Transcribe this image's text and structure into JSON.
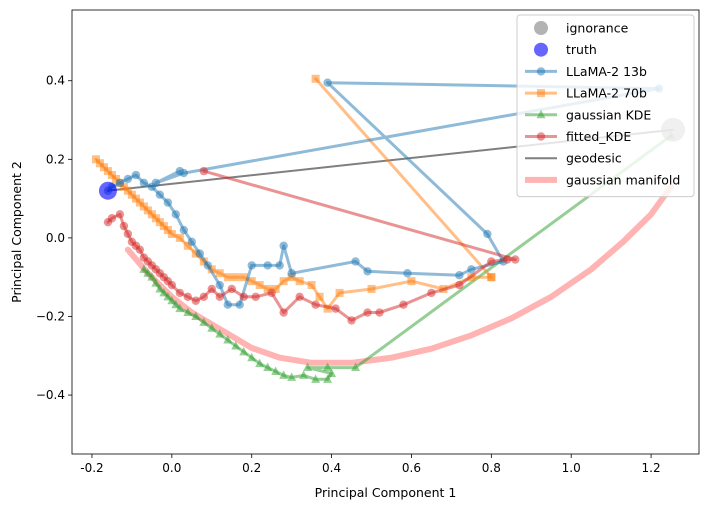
{
  "chart_data": {
    "type": "scatter",
    "xlabel": "Principal Component 1",
    "ylabel": "Principal Component 2",
    "xlim": [
      -0.25,
      1.32
    ],
    "ylim": [
      -0.55,
      0.58
    ],
    "xticks": [
      "-0.2",
      "0.0",
      "0.2",
      "0.4",
      "0.6",
      "0.8",
      "1.0",
      "1.2"
    ],
    "xtick_values": [
      -0.2,
      0.0,
      0.2,
      0.4,
      0.6,
      0.8,
      1.0,
      1.2
    ],
    "yticks": [
      "−0.4",
      "−0.2",
      "0.0",
      "0.2",
      "0.4"
    ],
    "ytick_values": [
      -0.4,
      -0.2,
      0.0,
      0.2,
      0.4
    ],
    "grid": false,
    "legend_position": "top-right",
    "legend": [
      "ignorance",
      "truth",
      "LLaMA-2 13b",
      "LLaMA-2 70b",
      "gaussian KDE",
      "fitted_KDE",
      "geodesic",
      "gaussian manifold"
    ],
    "points": [
      {
        "name": "ignorance",
        "x": 1.255,
        "y": 0.275,
        "color": "#808080"
      },
      {
        "name": "truth",
        "x": -0.16,
        "y": 0.12,
        "color": "#0000ff"
      }
    ],
    "series": [
      {
        "name": "gaussian manifold",
        "color": "#ff9999",
        "marker": "none",
        "x": [
          -0.11,
          -0.06,
          0.0,
          0.05,
          0.1,
          0.15,
          0.2,
          0.27,
          0.35,
          0.45,
          0.55,
          0.65,
          0.75,
          0.85,
          0.95,
          1.05,
          1.13,
          1.2,
          1.25
        ],
        "y": [
          -0.03,
          -0.09,
          -0.15,
          -0.19,
          -0.22,
          -0.25,
          -0.28,
          -0.305,
          -0.318,
          -0.318,
          -0.305,
          -0.282,
          -0.248,
          -0.205,
          -0.15,
          -0.08,
          -0.01,
          0.06,
          0.13
        ]
      },
      {
        "name": "geodesic",
        "color": "#000000",
        "marker": "none",
        "x": [
          -0.16,
          1.255
        ],
        "y": [
          0.12,
          0.275
        ]
      },
      {
        "name": "gaussian KDE",
        "color": "#2ca02c",
        "marker": "triangle",
        "x": [
          -0.07,
          -0.06,
          -0.05,
          -0.04,
          -0.03,
          -0.02,
          -0.01,
          0.0,
          0.01,
          0.02,
          0.04,
          0.06,
          0.08,
          0.1,
          0.12,
          0.14,
          0.16,
          0.18,
          0.2,
          0.22,
          0.24,
          0.26,
          0.28,
          0.3,
          0.33,
          0.36,
          0.39,
          0.4,
          0.34,
          0.39,
          0.46,
          1.25
        ],
        "y": [
          -0.08,
          -0.09,
          -0.1,
          -0.115,
          -0.13,
          -0.14,
          -0.15,
          -0.16,
          -0.17,
          -0.18,
          -0.19,
          -0.2,
          -0.215,
          -0.23,
          -0.245,
          -0.26,
          -0.275,
          -0.29,
          -0.305,
          -0.32,
          -0.33,
          -0.34,
          -0.35,
          -0.355,
          -0.35,
          -0.36,
          -0.36,
          -0.345,
          -0.33,
          -0.33,
          -0.33,
          0.26
        ]
      },
      {
        "name": "LLaMA-2 70b",
        "color": "#ff7f0e",
        "marker": "square",
        "x": [
          -0.19,
          -0.18,
          -0.17,
          -0.16,
          -0.15,
          -0.14,
          -0.13,
          -0.12,
          -0.11,
          -0.1,
          -0.09,
          -0.08,
          -0.07,
          -0.06,
          -0.05,
          -0.04,
          -0.03,
          -0.02,
          -0.01,
          0.0,
          0.02,
          0.04,
          0.06,
          0.08,
          0.1,
          0.12,
          0.14,
          0.16,
          0.18,
          0.2,
          0.22,
          0.24,
          0.26,
          0.28,
          0.3,
          0.32,
          0.35,
          0.37,
          0.39,
          0.42,
          0.5,
          0.6,
          0.68,
          0.75,
          0.8,
          0.36,
          0.8
        ],
        "y": [
          0.2,
          0.19,
          0.18,
          0.17,
          0.16,
          0.15,
          0.14,
          0.13,
          0.12,
          0.11,
          0.1,
          0.09,
          0.08,
          0.07,
          0.06,
          0.05,
          0.04,
          0.03,
          0.02,
          0.01,
          0.0,
          -0.02,
          -0.04,
          -0.06,
          -0.08,
          -0.09,
          -0.1,
          -0.1,
          -0.1,
          -0.11,
          -0.12,
          -0.13,
          -0.13,
          -0.11,
          -0.1,
          -0.11,
          -0.12,
          -0.15,
          -0.18,
          -0.14,
          -0.13,
          -0.11,
          -0.13,
          -0.1,
          -0.1,
          0.405,
          -0.1
        ]
      },
      {
        "name": "LLaMA-2 13b",
        "color": "#1f77b4",
        "marker": "circle",
        "x": [
          -0.16,
          -0.15,
          -0.13,
          -0.11,
          -0.09,
          -0.07,
          -0.05,
          -0.03,
          -0.01,
          0.01,
          0.03,
          0.05,
          0.07,
          0.09,
          0.12,
          0.14,
          0.17,
          0.2,
          0.24,
          0.27,
          0.28,
          0.3,
          0.46,
          0.49,
          0.59,
          0.72,
          0.75,
          0.83,
          0.79,
          0.39,
          1.22,
          0.03,
          -0.04,
          0.02
        ],
        "y": [
          0.12,
          0.13,
          0.14,
          0.15,
          0.16,
          0.14,
          0.13,
          0.11,
          0.09,
          0.06,
          0.02,
          -0.01,
          -0.04,
          -0.07,
          -0.12,
          -0.17,
          -0.17,
          -0.07,
          -0.07,
          -0.07,
          -0.02,
          -0.09,
          -0.06,
          -0.085,
          -0.09,
          -0.095,
          -0.08,
          -0.06,
          0.01,
          0.395,
          0.38,
          0.165,
          0.14,
          0.17
        ]
      },
      {
        "name": "fitted_KDE",
        "color": "#d62728",
        "marker": "circle",
        "x": [
          -0.16,
          -0.15,
          -0.13,
          -0.12,
          -0.11,
          -0.1,
          -0.09,
          -0.08,
          -0.07,
          -0.06,
          -0.05,
          -0.04,
          -0.03,
          -0.02,
          -0.01,
          0.0,
          0.02,
          0.04,
          0.06,
          0.08,
          0.1,
          0.12,
          0.15,
          0.18,
          0.21,
          0.25,
          0.28,
          0.32,
          0.36,
          0.41,
          0.45,
          0.49,
          0.52,
          0.58,
          0.65,
          0.72,
          0.8,
          0.84,
          0.86,
          0.08
        ],
        "y": [
          0.04,
          0.05,
          0.06,
          0.03,
          0.01,
          -0.01,
          -0.02,
          -0.03,
          -0.05,
          -0.06,
          -0.07,
          -0.08,
          -0.09,
          -0.1,
          -0.11,
          -0.12,
          -0.14,
          -0.15,
          -0.16,
          -0.15,
          -0.13,
          -0.15,
          -0.13,
          -0.15,
          -0.15,
          -0.14,
          -0.19,
          -0.15,
          -0.17,
          -0.18,
          -0.21,
          -0.19,
          -0.19,
          -0.17,
          -0.14,
          -0.12,
          -0.06,
          -0.055,
          -0.055,
          0.17
        ]
      }
    ]
  }
}
